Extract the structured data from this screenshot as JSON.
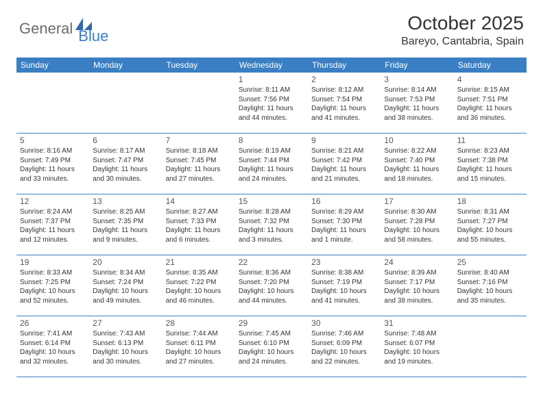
{
  "logo": {
    "part1": "General",
    "part2": "Blue"
  },
  "title": "October 2025",
  "location": "Bareyo, Cantabria, Spain",
  "colors": {
    "accent": "#3a7fc4",
    "text": "#333333",
    "logo_gray": "#6b6b6b",
    "background": "#ffffff"
  },
  "weekdays": [
    "Sunday",
    "Monday",
    "Tuesday",
    "Wednesday",
    "Thursday",
    "Friday",
    "Saturday"
  ],
  "weeks": [
    [
      null,
      null,
      null,
      {
        "n": "1",
        "sr": "Sunrise: 8:11 AM",
        "ss": "Sunset: 7:56 PM",
        "d1": "Daylight: 11 hours",
        "d2": "and 44 minutes."
      },
      {
        "n": "2",
        "sr": "Sunrise: 8:12 AM",
        "ss": "Sunset: 7:54 PM",
        "d1": "Daylight: 11 hours",
        "d2": "and 41 minutes."
      },
      {
        "n": "3",
        "sr": "Sunrise: 8:14 AM",
        "ss": "Sunset: 7:53 PM",
        "d1": "Daylight: 11 hours",
        "d2": "and 38 minutes."
      },
      {
        "n": "4",
        "sr": "Sunrise: 8:15 AM",
        "ss": "Sunset: 7:51 PM",
        "d1": "Daylight: 11 hours",
        "d2": "and 36 minutes."
      }
    ],
    [
      {
        "n": "5",
        "sr": "Sunrise: 8:16 AM",
        "ss": "Sunset: 7:49 PM",
        "d1": "Daylight: 11 hours",
        "d2": "and 33 minutes."
      },
      {
        "n": "6",
        "sr": "Sunrise: 8:17 AM",
        "ss": "Sunset: 7:47 PM",
        "d1": "Daylight: 11 hours",
        "d2": "and 30 minutes."
      },
      {
        "n": "7",
        "sr": "Sunrise: 8:18 AM",
        "ss": "Sunset: 7:45 PM",
        "d1": "Daylight: 11 hours",
        "d2": "and 27 minutes."
      },
      {
        "n": "8",
        "sr": "Sunrise: 8:19 AM",
        "ss": "Sunset: 7:44 PM",
        "d1": "Daylight: 11 hours",
        "d2": "and 24 minutes."
      },
      {
        "n": "9",
        "sr": "Sunrise: 8:21 AM",
        "ss": "Sunset: 7:42 PM",
        "d1": "Daylight: 11 hours",
        "d2": "and 21 minutes."
      },
      {
        "n": "10",
        "sr": "Sunrise: 8:22 AM",
        "ss": "Sunset: 7:40 PM",
        "d1": "Daylight: 11 hours",
        "d2": "and 18 minutes."
      },
      {
        "n": "11",
        "sr": "Sunrise: 8:23 AM",
        "ss": "Sunset: 7:38 PM",
        "d1": "Daylight: 11 hours",
        "d2": "and 15 minutes."
      }
    ],
    [
      {
        "n": "12",
        "sr": "Sunrise: 8:24 AM",
        "ss": "Sunset: 7:37 PM",
        "d1": "Daylight: 11 hours",
        "d2": "and 12 minutes."
      },
      {
        "n": "13",
        "sr": "Sunrise: 8:25 AM",
        "ss": "Sunset: 7:35 PM",
        "d1": "Daylight: 11 hours",
        "d2": "and 9 minutes."
      },
      {
        "n": "14",
        "sr": "Sunrise: 8:27 AM",
        "ss": "Sunset: 7:33 PM",
        "d1": "Daylight: 11 hours",
        "d2": "and 6 minutes."
      },
      {
        "n": "15",
        "sr": "Sunrise: 8:28 AM",
        "ss": "Sunset: 7:32 PM",
        "d1": "Daylight: 11 hours",
        "d2": "and 3 minutes."
      },
      {
        "n": "16",
        "sr": "Sunrise: 8:29 AM",
        "ss": "Sunset: 7:30 PM",
        "d1": "Daylight: 11 hours",
        "d2": "and 1 minute."
      },
      {
        "n": "17",
        "sr": "Sunrise: 8:30 AM",
        "ss": "Sunset: 7:28 PM",
        "d1": "Daylight: 10 hours",
        "d2": "and 58 minutes."
      },
      {
        "n": "18",
        "sr": "Sunrise: 8:31 AM",
        "ss": "Sunset: 7:27 PM",
        "d1": "Daylight: 10 hours",
        "d2": "and 55 minutes."
      }
    ],
    [
      {
        "n": "19",
        "sr": "Sunrise: 8:33 AM",
        "ss": "Sunset: 7:25 PM",
        "d1": "Daylight: 10 hours",
        "d2": "and 52 minutes."
      },
      {
        "n": "20",
        "sr": "Sunrise: 8:34 AM",
        "ss": "Sunset: 7:24 PM",
        "d1": "Daylight: 10 hours",
        "d2": "and 49 minutes."
      },
      {
        "n": "21",
        "sr": "Sunrise: 8:35 AM",
        "ss": "Sunset: 7:22 PM",
        "d1": "Daylight: 10 hours",
        "d2": "and 46 minutes."
      },
      {
        "n": "22",
        "sr": "Sunrise: 8:36 AM",
        "ss": "Sunset: 7:20 PM",
        "d1": "Daylight: 10 hours",
        "d2": "and 44 minutes."
      },
      {
        "n": "23",
        "sr": "Sunrise: 8:38 AM",
        "ss": "Sunset: 7:19 PM",
        "d1": "Daylight: 10 hours",
        "d2": "and 41 minutes."
      },
      {
        "n": "24",
        "sr": "Sunrise: 8:39 AM",
        "ss": "Sunset: 7:17 PM",
        "d1": "Daylight: 10 hours",
        "d2": "and 38 minutes."
      },
      {
        "n": "25",
        "sr": "Sunrise: 8:40 AM",
        "ss": "Sunset: 7:16 PM",
        "d1": "Daylight: 10 hours",
        "d2": "and 35 minutes."
      }
    ],
    [
      {
        "n": "26",
        "sr": "Sunrise: 7:41 AM",
        "ss": "Sunset: 6:14 PM",
        "d1": "Daylight: 10 hours",
        "d2": "and 32 minutes."
      },
      {
        "n": "27",
        "sr": "Sunrise: 7:43 AM",
        "ss": "Sunset: 6:13 PM",
        "d1": "Daylight: 10 hours",
        "d2": "and 30 minutes."
      },
      {
        "n": "28",
        "sr": "Sunrise: 7:44 AM",
        "ss": "Sunset: 6:11 PM",
        "d1": "Daylight: 10 hours",
        "d2": "and 27 minutes."
      },
      {
        "n": "29",
        "sr": "Sunrise: 7:45 AM",
        "ss": "Sunset: 6:10 PM",
        "d1": "Daylight: 10 hours",
        "d2": "and 24 minutes."
      },
      {
        "n": "30",
        "sr": "Sunrise: 7:46 AM",
        "ss": "Sunset: 6:09 PM",
        "d1": "Daylight: 10 hours",
        "d2": "and 22 minutes."
      },
      {
        "n": "31",
        "sr": "Sunrise: 7:48 AM",
        "ss": "Sunset: 6:07 PM",
        "d1": "Daylight: 10 hours",
        "d2": "and 19 minutes."
      },
      null
    ]
  ]
}
